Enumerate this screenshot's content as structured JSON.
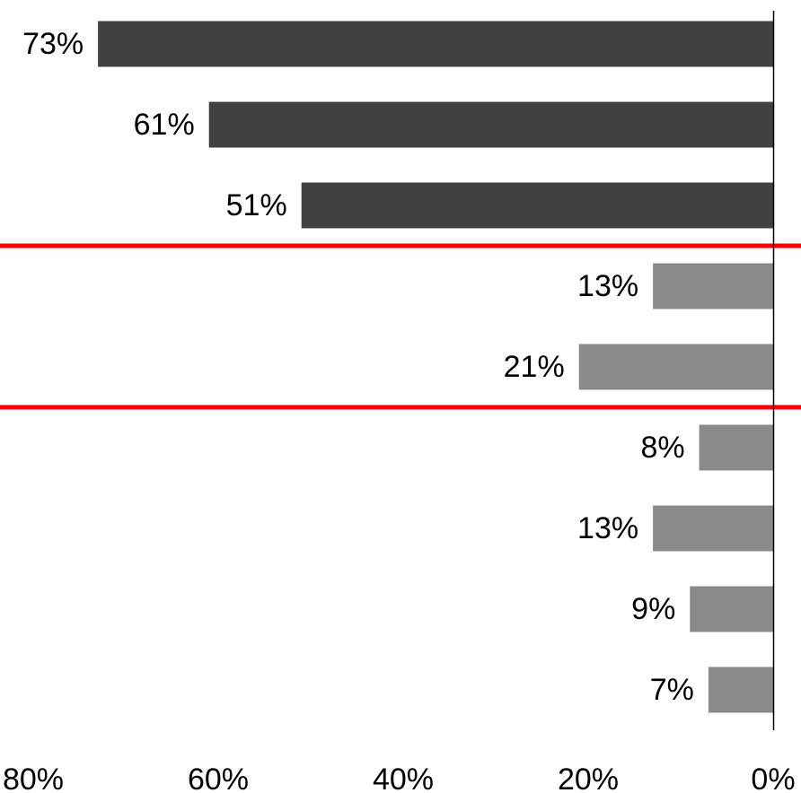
{
  "chart_data": {
    "type": "bar",
    "orientation": "horizontal",
    "x_axis_direction": "reversed",
    "values": [
      73,
      61,
      51,
      13,
      21,
      8,
      13,
      9,
      7
    ],
    "value_labels": [
      "73%",
      "61%",
      "51%",
      "13%",
      "21%",
      "8%",
      "13%",
      "9%",
      "7%"
    ],
    "bar_colors": [
      "#414141",
      "#414141",
      "#414141",
      "#8b8a8b",
      "#8b8a8b",
      "#8b8a8b",
      "#8b8a8b",
      "#8b8a8b",
      "#8b8a8b"
    ],
    "group_separators_after_index": [
      2,
      4
    ],
    "separator_color": "#ff0000",
    "axis_color": "#000000",
    "xlim": [
      80,
      0
    ],
    "xticks": [
      80,
      60,
      40,
      20,
      0
    ],
    "xtick_labels": [
      "80%",
      "60%",
      "40%",
      "20%",
      "0%"
    ],
    "grid": false,
    "title": "",
    "xlabel": "",
    "ylabel": ""
  }
}
